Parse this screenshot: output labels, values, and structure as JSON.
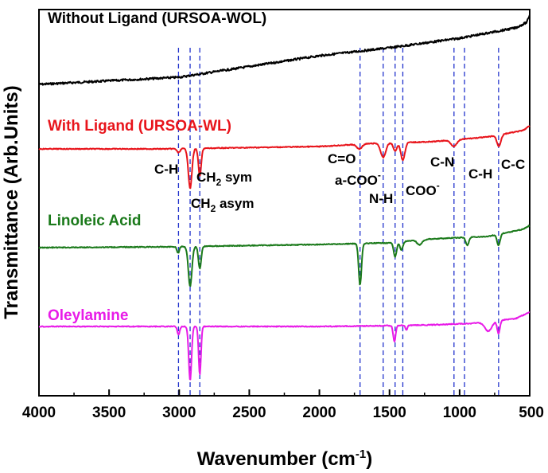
{
  "chart_data": {
    "type": "line",
    "title": "",
    "xlabel": "Wavenumber (cm",
    "xlabel_sup": "-1",
    "xlabel_end": ")",
    "ylabel": "Transmittance (Arb.Units)",
    "xlim": [
      4000,
      500
    ],
    "x_reversed": true,
    "x_ticks": [
      4000,
      3500,
      3000,
      2500,
      2000,
      1500,
      1000,
      500
    ],
    "y_ticks_shown": false,
    "grid": false,
    "legend": "none",
    "series": [
      {
        "name": "Without Ligand (URSOA-WOL)",
        "color": "#000000",
        "baseline": [
          [
            4000,
            106
          ],
          [
            3000,
            97
          ],
          [
            2000,
            70
          ],
          [
            1500,
            60
          ],
          [
            1000,
            48
          ],
          [
            600,
            35
          ],
          [
            520,
            28
          ],
          [
            500,
            18
          ]
        ],
        "peaks": []
      },
      {
        "name": "With Ligand (URSOA-WL)",
        "color": "#e8141b",
        "baseline": [
          [
            4000,
            187
          ],
          [
            3100,
            187
          ],
          [
            2000,
            184
          ],
          [
            1600,
            180
          ],
          [
            1200,
            178
          ],
          [
            800,
            172
          ],
          [
            550,
            164
          ],
          [
            500,
            158
          ]
        ],
        "peaks": [
          [
            2922,
            50,
            18
          ],
          [
            2853,
            35,
            14
          ],
          [
            3005,
            5,
            15
          ],
          [
            1715,
            6,
            25
          ],
          [
            1545,
            18,
            25
          ],
          [
            1460,
            10,
            18
          ],
          [
            1405,
            22,
            20
          ],
          [
            1040,
            8,
            30
          ],
          [
            720,
            14,
            20
          ]
        ]
      },
      {
        "name": "Linoleic Acid",
        "color": "#1b7a1b",
        "baseline": [
          [
            4000,
            311
          ],
          [
            3100,
            310
          ],
          [
            2000,
            307
          ],
          [
            1500,
            305
          ],
          [
            1200,
            300
          ],
          [
            800,
            297
          ],
          [
            550,
            288
          ],
          [
            500,
            283
          ]
        ],
        "peaks": [
          [
            2922,
            50,
            18
          ],
          [
            2853,
            28,
            14
          ],
          [
            3008,
            8,
            12
          ],
          [
            1710,
            52,
            14
          ],
          [
            1460,
            18,
            15
          ],
          [
            1415,
            10,
            15
          ],
          [
            1285,
            6,
            25
          ],
          [
            945,
            10,
            15
          ],
          [
            722,
            14,
            15
          ]
        ]
      },
      {
        "name": "Oleylamine",
        "color": "#e81be8",
        "baseline": [
          [
            4000,
            410
          ],
          [
            3100,
            410
          ],
          [
            2000,
            410
          ],
          [
            1500,
            409
          ],
          [
            1200,
            408
          ],
          [
            900,
            406
          ],
          [
            800,
            404
          ],
          [
            600,
            400
          ],
          [
            500,
            392
          ]
        ],
        "peaks": [
          [
            2922,
            68,
            14
          ],
          [
            2853,
            60,
            12
          ],
          [
            3005,
            10,
            12
          ],
          [
            1465,
            20,
            12
          ],
          [
            1380,
            6,
            10
          ],
          [
            795,
            12,
            35
          ],
          [
            722,
            16,
            14
          ]
        ]
      }
    ],
    "reference_lines_cm": [
      3005,
      2922,
      2853,
      1710,
      1545,
      1460,
      1405,
      1040,
      965,
      722
    ],
    "reference_line_color": "#2233cc",
    "annotations": [
      {
        "text": "C-H",
        "sub": "",
        "rest": ""
      },
      {
        "text": "CH",
        "sub": "2",
        "rest": " sym"
      },
      {
        "text": "CH",
        "sub": "2",
        "rest": " asym"
      },
      {
        "text": "C=O",
        "sub": "",
        "rest": ""
      },
      {
        "text": "a-COO",
        "sub": "-",
        "rest": ""
      },
      {
        "text": "N-H",
        "sub": "",
        "rest": ""
      },
      {
        "text": "COO",
        "sub": "-",
        "rest": ""
      },
      {
        "text": "C-N",
        "sub": "",
        "rest": ""
      },
      {
        "text": "C-H",
        "sub": "",
        "rest": ""
      },
      {
        "text": "C-C",
        "sub": "",
        "rest": ""
      }
    ]
  }
}
